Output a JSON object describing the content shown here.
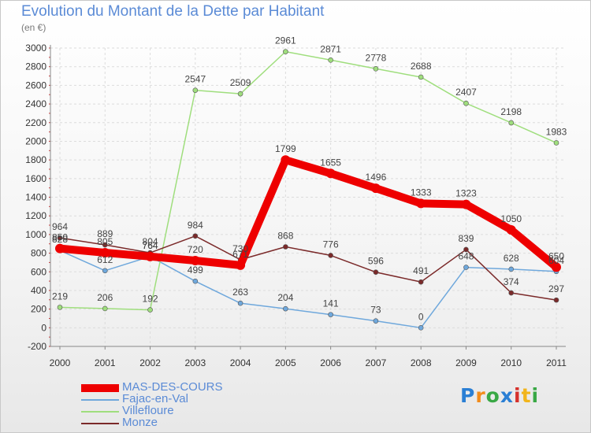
{
  "title": "Evolution du Montant de la Dette par Habitant",
  "subtitle": "(en €)",
  "brand": {
    "letters": [
      {
        "ch": "P",
        "color": "#2a7fd4"
      },
      {
        "ch": "r",
        "color": "#f28c1b"
      },
      {
        "ch": "o",
        "color": "#39a845"
      },
      {
        "ch": "x",
        "color": "#2a7fd4"
      },
      {
        "ch": "i",
        "color": "#d6312b"
      },
      {
        "ch": "t",
        "color": "#f2b51b"
      },
      {
        "ch": "i",
        "color": "#39a845"
      }
    ]
  },
  "chart_data": {
    "type": "line",
    "x": [
      "2000",
      "2001",
      "2002",
      "2003",
      "2004",
      "2005",
      "2006",
      "2007",
      "2008",
      "2009",
      "2010",
      "2011"
    ],
    "yticks": [
      -200,
      0,
      200,
      400,
      600,
      800,
      1000,
      1200,
      1400,
      1600,
      1800,
      2000,
      2200,
      2400,
      2600,
      2800,
      3000
    ],
    "ylim": [
      -200,
      3000
    ],
    "grid": true,
    "series": [
      {
        "name": "MAS-DES-COURS",
        "color": "#ee0000",
        "width": 10,
        "values": [
          850,
          805,
          764,
          720,
          671,
          1799,
          1655,
          1496,
          1333,
          1323,
          1050,
          650
        ],
        "labels": [
          "850",
          "805",
          "764",
          "720",
          "671",
          "1799",
          "1655",
          "1496",
          "1333",
          "1323",
          "1050",
          "650"
        ]
      },
      {
        "name": "Fajac-en-Val",
        "color": "#6fa8dc",
        "width": 1.5,
        "values": [
          828,
          612,
          764,
          499,
          263,
          204,
          141,
          73,
          0,
          648,
          628,
          604
        ],
        "labels": [
          "828",
          "612",
          "764",
          "499",
          "263",
          "204",
          "141",
          "73",
          "0",
          "648",
          "628",
          "604"
        ]
      },
      {
        "name": "Villefloure",
        "color": "#9fde7d",
        "width": 1.5,
        "values": [
          219,
          206,
          192,
          2547,
          2509,
          2961,
          2871,
          2778,
          2688,
          2407,
          2198,
          1983
        ],
        "labels": [
          "219",
          "206",
          "192",
          "2547",
          "2509",
          "2961",
          "2871",
          "2778",
          "2688",
          "2407",
          "2198",
          "1983"
        ]
      },
      {
        "name": "Monze",
        "color": "#7b2a2a",
        "width": 1.5,
        "values": [
          964,
          889,
          804,
          984,
          730,
          868,
          776,
          596,
          491,
          839,
          374,
          297
        ],
        "labels": [
          "964",
          "889",
          "804",
          "984",
          "730",
          "868",
          "776",
          "596",
          "491",
          "839",
          "374",
          "297"
        ]
      }
    ]
  }
}
